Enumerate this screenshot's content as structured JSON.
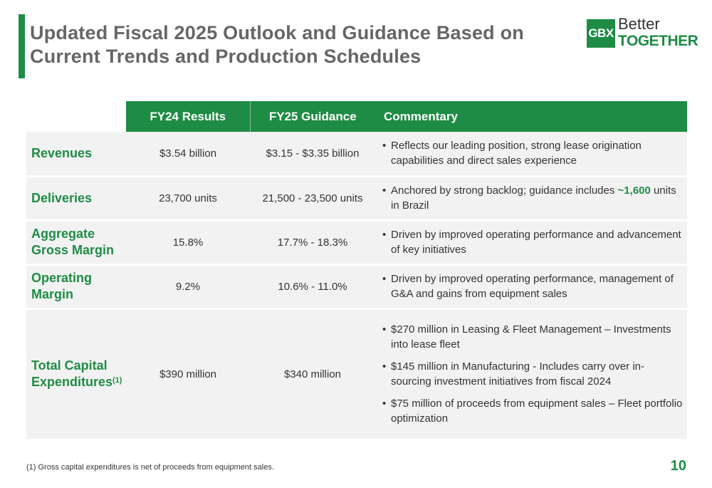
{
  "title": "Updated Fiscal 2025 Outlook and Guidance Based on Current Trends and Production Schedules",
  "logo": {
    "abbr": "GBX",
    "line1": "Better",
    "line2": "TOGETHER"
  },
  "table": {
    "headers": {
      "fy24": "FY24 Results",
      "fy25": "FY25 Guidance",
      "commentary": "Commentary"
    },
    "rows": [
      {
        "label": "Revenues",
        "fy24": "$3.54 billion",
        "fy25": "$3.15 - $3.35 billion",
        "bullets": [
          "Reflects our leading position, strong lease origination capabilities and direct sales experience"
        ]
      },
      {
        "label": "Deliveries",
        "fy24": "23,700 units",
        "fy25": "21,500 - 23,500 units",
        "bullet_pre": "Anchored by strong backlog; guidance includes ",
        "bullet_hl": "~1,600",
        "bullet_post": " units in Brazil"
      },
      {
        "label_l1": "Aggregate",
        "label_l2": "Gross Margin",
        "fy24": "15.8%",
        "fy25": "17.7% - 18.3%",
        "bullets": [
          "Driven by improved operating performance and advancement of key initiatives"
        ]
      },
      {
        "label_l1": "Operating",
        "label_l2": "Margin",
        "fy24": "9.2%",
        "fy25": "10.6% - 11.0%",
        "bullets": [
          "Driven by improved operating performance, management of G&A and gains from equipment sales"
        ]
      },
      {
        "label_l1": "Total Capital",
        "label_l2": "Expenditures",
        "label_sup": "(1)",
        "fy24": "$390 million",
        "fy25": "$340 million",
        "bullets": [
          "$270 million in Leasing & Fleet Management – Investments into lease fleet",
          "$145 million in Manufacturing - Includes carry over in-sourcing investment initiatives from fiscal 2024",
          "$75 million of proceeds from equipment sales – Fleet portfolio optimization"
        ]
      }
    ]
  },
  "footnote": "(1) Gross capital expenditures is net of proceeds from equipment sales.",
  "page_number": "10",
  "colors": {
    "accent": "#1e8c45",
    "title": "#666666",
    "row_bg": "#f2f2f2"
  }
}
